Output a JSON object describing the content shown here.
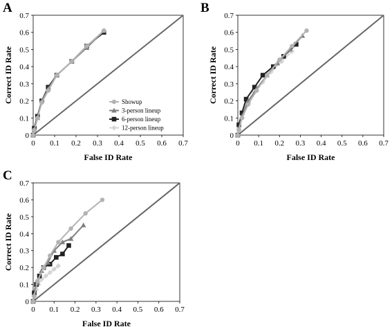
{
  "series_styles": [
    {
      "name": "Showup",
      "color": "#b3b3b3",
      "marker": "circle"
    },
    {
      "name": "3-person lineup",
      "color": "#808080",
      "marker": "triangle"
    },
    {
      "name": "6-person lineup",
      "color": "#222222",
      "marker": "square"
    },
    {
      "name": "12-person lineup",
      "color": "#d6d6d6",
      "marker": "diamond"
    }
  ],
  "chart_data": [
    {
      "panel": "A",
      "type": "line",
      "xlabel": "False ID Rate",
      "ylabel": "Correct ID Rate",
      "xlim": [
        0,
        0.7
      ],
      "ylim": [
        0,
        0.7
      ],
      "x_ticks": [
        "0",
        "0.1",
        "0.2",
        "0.3",
        "0.4",
        "0.5",
        "0.6",
        "0.7"
      ],
      "y_ticks": [
        "0",
        "0.1",
        "0.2",
        "0.3",
        "0.4",
        "0.5",
        "0.6",
        "0.7"
      ],
      "legend": "center-right",
      "diagonal": true,
      "series": [
        {
          "name": "Showup",
          "x": [
            0,
            0.005,
            0.02,
            0.04,
            0.07,
            0.11,
            0.18,
            0.25,
            0.33
          ],
          "y": [
            0,
            0.03,
            0.1,
            0.19,
            0.26,
            0.35,
            0.43,
            0.52,
            0.61
          ]
        },
        {
          "name": "3-person lineup",
          "x": [
            0,
            0.005,
            0.02,
            0.04,
            0.07,
            0.11,
            0.18,
            0.25,
            0.33
          ],
          "y": [
            0,
            0.03,
            0.1,
            0.2,
            0.27,
            0.35,
            0.43,
            0.51,
            0.61
          ]
        },
        {
          "name": "6-person lineup",
          "x": [
            0,
            0.005,
            0.02,
            0.04,
            0.07,
            0.11,
            0.18,
            0.25,
            0.33
          ],
          "y": [
            0,
            0.04,
            0.11,
            0.2,
            0.28,
            0.35,
            0.43,
            0.52,
            0.6
          ]
        },
        {
          "name": "12-person lineup",
          "x": [
            0,
            0.005,
            0.02,
            0.04,
            0.07,
            0.11,
            0.18,
            0.25,
            0.33
          ],
          "y": [
            0,
            0.03,
            0.1,
            0.19,
            0.26,
            0.35,
            0.43,
            0.52,
            0.61
          ]
        }
      ]
    },
    {
      "panel": "B",
      "type": "line",
      "xlabel": "False ID Rate",
      "ylabel": "Correct ID Rate",
      "xlim": [
        0,
        0.7
      ],
      "ylim": [
        0,
        0.7
      ],
      "x_ticks": [
        "0",
        "0.1",
        "0.2",
        "0.3",
        "0.4",
        "0.5",
        "0.6",
        "0.7"
      ],
      "y_ticks": [
        "0",
        "0.1",
        "0.2",
        "0.3",
        "0.4",
        "0.5",
        "0.6",
        "0.7"
      ],
      "diagonal": true,
      "series": [
        {
          "name": "Showup",
          "x": [
            0,
            0.005,
            0.02,
            0.05,
            0.09,
            0.14,
            0.2,
            0.26,
            0.33
          ],
          "y": [
            0,
            0.03,
            0.1,
            0.18,
            0.26,
            0.35,
            0.44,
            0.52,
            0.61
          ]
        },
        {
          "name": "3-person lineup",
          "x": [
            0,
            0.005,
            0.02,
            0.05,
            0.09,
            0.14,
            0.19,
            0.25,
            0.31
          ],
          "y": [
            0,
            0.04,
            0.11,
            0.2,
            0.27,
            0.35,
            0.42,
            0.5,
            0.58
          ]
        },
        {
          "name": "6-person lineup",
          "x": [
            0,
            0.005,
            0.02,
            0.04,
            0.08,
            0.12,
            0.17,
            0.22,
            0.28
          ],
          "y": [
            0,
            0.06,
            0.13,
            0.21,
            0.28,
            0.35,
            0.4,
            0.46,
            0.53
          ]
        },
        {
          "name": "12-person lineup",
          "x": [
            0,
            0.005,
            0.02,
            0.04,
            0.08,
            0.12,
            0.16,
            0.21,
            0.26
          ],
          "y": [
            0,
            0.04,
            0.1,
            0.18,
            0.25,
            0.31,
            0.37,
            0.43,
            0.49
          ]
        }
      ]
    },
    {
      "panel": "C",
      "type": "line",
      "xlabel": "False ID Rate",
      "ylabel": "Correct ID Rate",
      "xlim": [
        0,
        0.7
      ],
      "ylim": [
        0,
        0.7
      ],
      "x_ticks": [
        "0",
        "0.1",
        "0.2",
        "0.3",
        "0.4",
        "0.5",
        "0.6",
        "0.7"
      ],
      "y_ticks": [
        "0",
        "0.1",
        "0.2",
        "0.3",
        "0.4",
        "0.5",
        "0.6",
        "0.7"
      ],
      "diagonal": true,
      "series": [
        {
          "name": "Showup",
          "x": [
            0,
            0.005,
            0.02,
            0.05,
            0.08,
            0.12,
            0.18,
            0.25,
            0.33
          ],
          "y": [
            0,
            0.03,
            0.12,
            0.2,
            0.27,
            0.35,
            0.43,
            0.52,
            0.6
          ]
        },
        {
          "name": "3-person lineup",
          "x": [
            0,
            0.005,
            0.02,
            0.04,
            0.07,
            0.1,
            0.14,
            0.18,
            0.24
          ],
          "y": [
            0,
            0.04,
            0.11,
            0.18,
            0.23,
            0.3,
            0.35,
            0.37,
            0.45
          ]
        },
        {
          "name": "6-person lineup",
          "x": [
            0,
            0.005,
            0.015,
            0.03,
            0.05,
            0.08,
            0.11,
            0.14,
            0.17
          ],
          "y": [
            0,
            0.05,
            0.1,
            0.15,
            0.2,
            0.22,
            0.26,
            0.28,
            0.33
          ]
        },
        {
          "name": "12-person lineup",
          "x": [
            0,
            0.005,
            0.015,
            0.025,
            0.04,
            0.06,
            0.08,
            0.1,
            0.12
          ],
          "y": [
            0,
            0.03,
            0.07,
            0.1,
            0.13,
            0.15,
            0.17,
            0.19,
            0.21
          ]
        }
      ]
    }
  ]
}
